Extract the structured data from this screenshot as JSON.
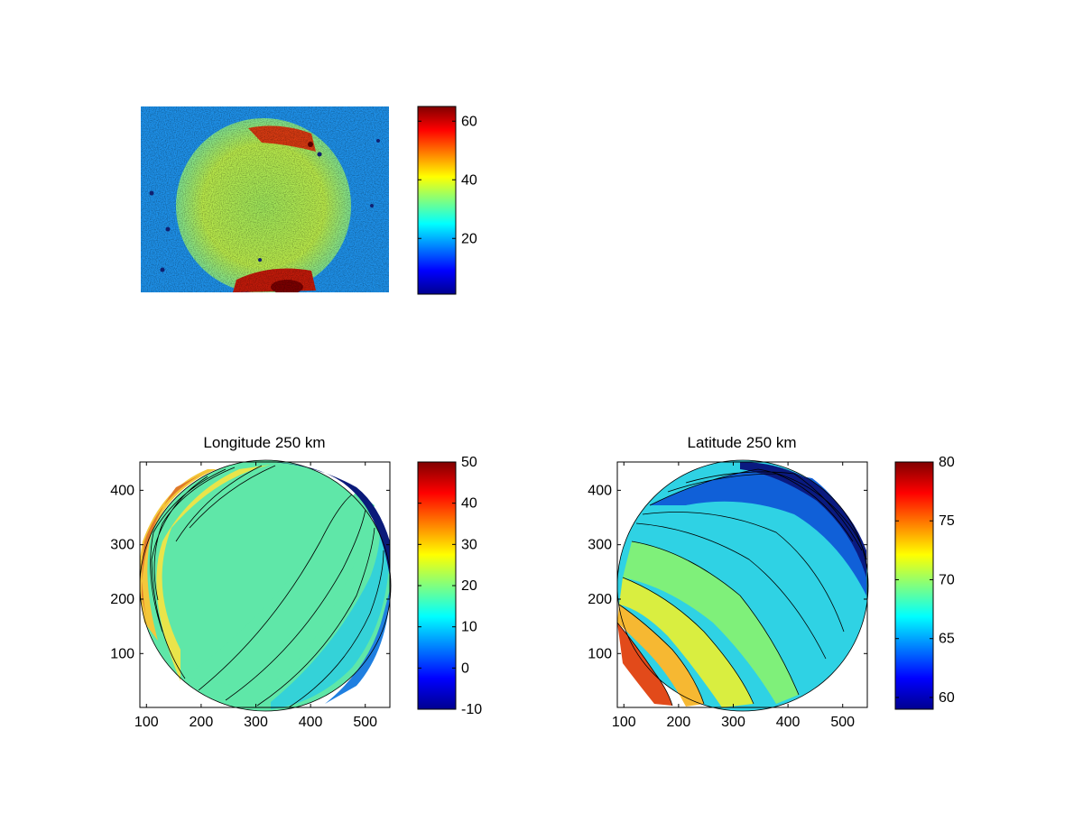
{
  "figure": {
    "colormap": "jet",
    "background": "#ffffff"
  },
  "chart_data": [
    {
      "id": "raw-image",
      "type": "heatmap",
      "title": "",
      "content": "noisy circular disk image with saturated red patches top-right and bottom",
      "clim": [
        1,
        65
      ],
      "colorbar": {
        "ticks": [
          20,
          40,
          60
        ]
      }
    },
    {
      "id": "longitude",
      "type": "heatmap",
      "style": "filled-contour",
      "title": "Longitude 250 km",
      "xticks": [
        100,
        200,
        300,
        400,
        500
      ],
      "yticks": [
        100,
        200,
        300,
        400
      ],
      "xlim": [
        88,
        545
      ],
      "ylim": [
        1,
        452
      ],
      "clim": [
        -10,
        50
      ],
      "colorbar": {
        "ticks": [
          -10,
          0,
          10,
          20,
          30,
          40,
          50
        ]
      }
    },
    {
      "id": "latitude",
      "type": "heatmap",
      "style": "filled-contour",
      "title": "Latitude 250 km",
      "xticks": [
        100,
        200,
        300,
        400,
        500
      ],
      "yticks": [
        100,
        200,
        300,
        400
      ],
      "xlim": [
        88,
        545
      ],
      "ylim": [
        1,
        452
      ],
      "clim": [
        59,
        80
      ],
      "colorbar": {
        "ticks": [
          60,
          65,
          70,
          75,
          80
        ]
      }
    }
  ]
}
